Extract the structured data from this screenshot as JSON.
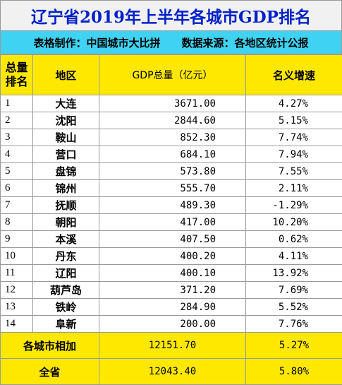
{
  "title": "辽宁省2019年上半年各城市GDP排名",
  "subtitle": {
    "maker": "表格制作：中国城市大比拼",
    "source": "数据来源：各地区统计公报"
  },
  "headers": {
    "rank_line1": "总量",
    "rank_line2": "排名",
    "city": "地区",
    "gdp": "GDP总量（亿元）",
    "growth": "名义增速"
  },
  "rows": [
    {
      "rank": "1",
      "city": "大连",
      "gdp": "3671.00",
      "growth": "4.27%"
    },
    {
      "rank": "2",
      "city": "沈阳",
      "gdp": "2844.60",
      "growth": "5.15%"
    },
    {
      "rank": "3",
      "city": "鞍山",
      "gdp": "852.30",
      "growth": "7.74%"
    },
    {
      "rank": "4",
      "city": "营口",
      "gdp": "684.10",
      "growth": "7.94%"
    },
    {
      "rank": "5",
      "city": "盘锦",
      "gdp": "573.80",
      "growth": "7.55%"
    },
    {
      "rank": "6",
      "city": "锦州",
      "gdp": "555.70",
      "growth": "2.11%"
    },
    {
      "rank": "7",
      "city": "抚顺",
      "gdp": "489.30",
      "growth": "-1.29%"
    },
    {
      "rank": "8",
      "city": "朝阳",
      "gdp": "417.00",
      "growth": "10.20%"
    },
    {
      "rank": "9",
      "city": "本溪",
      "gdp": "407.50",
      "growth": "0.62%"
    },
    {
      "rank": "10",
      "city": "丹东",
      "gdp": "400.20",
      "growth": "4.11%"
    },
    {
      "rank": "11",
      "city": "辽阳",
      "gdp": "400.10",
      "growth": "13.92%"
    },
    {
      "rank": "12",
      "city": "葫芦岛",
      "gdp": "371.20",
      "growth": "7.69%"
    },
    {
      "rank": "13",
      "city": "铁岭",
      "gdp": "284.90",
      "growth": "5.52%"
    },
    {
      "rank": "14",
      "city": "阜新",
      "gdp": "200.00",
      "growth": "7.76%"
    }
  ],
  "totals": [
    {
      "label": "各城市相加",
      "gdp": "12151.70",
      "growth": "5.27%"
    },
    {
      "label": "全省",
      "gdp": "12043.40",
      "growth": "5.80%"
    }
  ],
  "colors": {
    "title_text": "#0020c8",
    "subtitle_bg": "#3fd2f2",
    "header_bg": "#ffe800",
    "border": "#9a9a9a"
  }
}
